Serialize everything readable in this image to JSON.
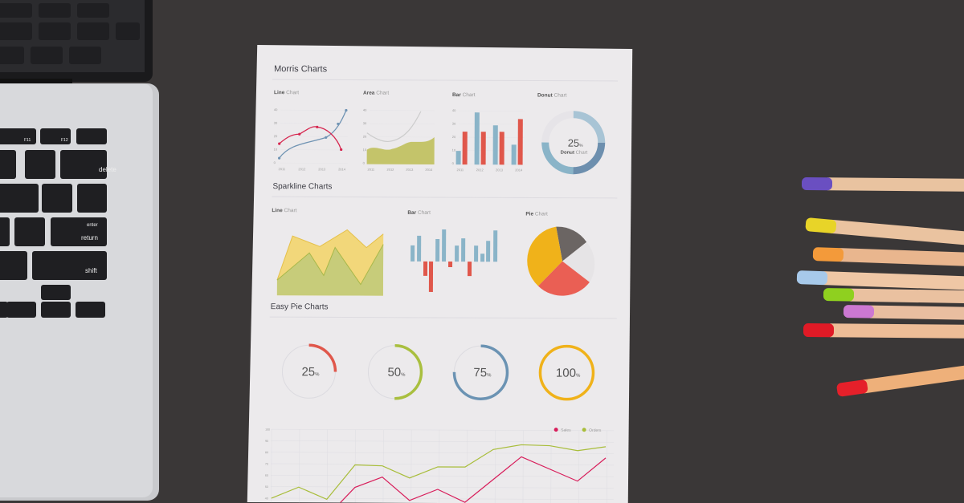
{
  "paper": {
    "title": "Morris Charts",
    "morris": {
      "line": {
        "bold": "Line",
        "rest": "Chart"
      },
      "area": {
        "bold": "Area",
        "rest": "Chart"
      },
      "bar": {
        "bold": "Bar",
        "rest": "Chart"
      },
      "donut": {
        "bold": "Donut",
        "rest": "Chart",
        "value": "25",
        "unit": "%",
        "center_bold": "Donut",
        "center_rest": "Chart"
      },
      "years": [
        "2011",
        "2012",
        "2013",
        "2014"
      ],
      "yticks": [
        "40",
        "30",
        "20",
        "10",
        "0"
      ]
    },
    "sparkline_title": "Sparkline Charts",
    "sparkline": {
      "line": {
        "bold": "Line",
        "rest": "Chart"
      },
      "bar": {
        "bold": "Bar",
        "rest": "Chart"
      },
      "pie": {
        "bold": "Pie",
        "rest": "Chart"
      }
    },
    "easy_pie_title": "Easy Pie Charts",
    "easy_pie": [
      {
        "value": "25",
        "unit": "%",
        "color": "#e0574b"
      },
      {
        "value": "50",
        "unit": "%",
        "color": "#a9bf3f"
      },
      {
        "value": "75",
        "unit": "%",
        "color": "#6b93b3"
      },
      {
        "value": "100",
        "unit": "%",
        "color": "#f0b21a"
      }
    ],
    "bottom_chart": {
      "legend": [
        {
          "name": "Sales",
          "color": "#d81e5b"
        },
        {
          "name": "Orders",
          "color": "#a8bd3a"
        }
      ],
      "yticks": [
        "100",
        "90",
        "80",
        "70",
        "60",
        "50",
        "40"
      ]
    }
  },
  "laptop_keys": {
    "delete": "delete",
    "enter": "enter",
    "return": "return",
    "shift": "shift",
    "f11": "F11",
    "f12": "F12"
  },
  "colors": {
    "desk": "#3a3737",
    "paper": "#eceaec",
    "blue": "#8ab4c8",
    "red": "#e0574b",
    "green": "#c2c46a",
    "yellow": "#f0b21a"
  }
}
